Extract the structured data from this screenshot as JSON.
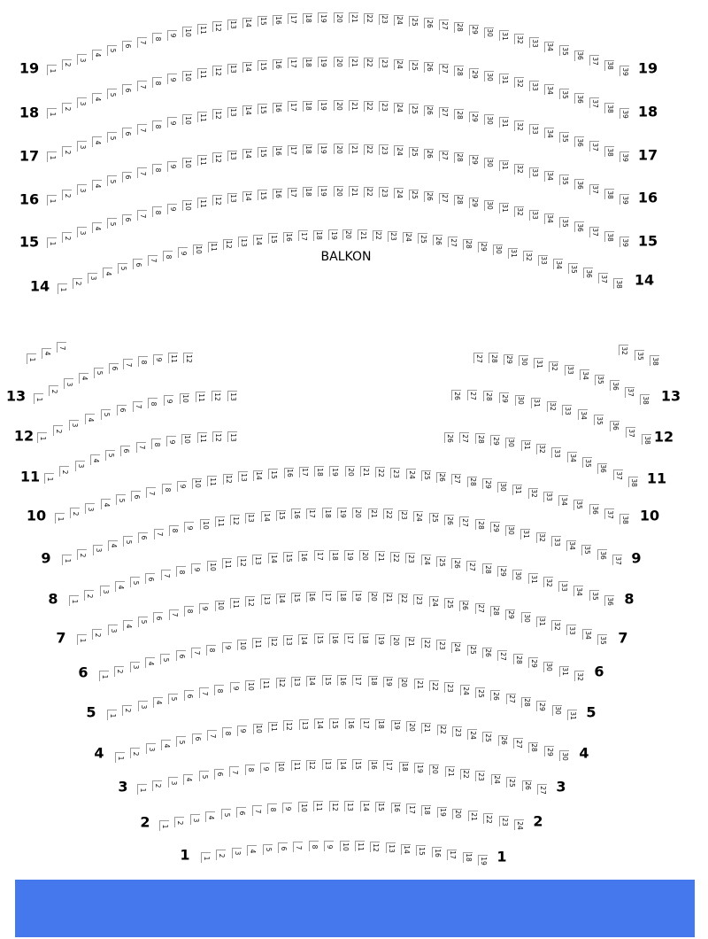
{
  "section_label": "BALKON",
  "colors": {
    "footer_bar": "#4578ED",
    "seat_border": "#9a9a9a",
    "text": "#000000"
  },
  "rows": [
    {
      "label": "19",
      "segments": [
        {
          "from": 1,
          "to": 39
        }
      ]
    },
    {
      "label": "18",
      "segments": [
        {
          "from": 1,
          "to": 39
        }
      ]
    },
    {
      "label": "17",
      "segments": [
        {
          "from": 1,
          "to": 39
        }
      ]
    },
    {
      "label": "16",
      "segments": [
        {
          "from": 1,
          "to": 39
        }
      ]
    },
    {
      "label": "15",
      "segments": [
        {
          "from": 1,
          "to": 39
        }
      ]
    },
    {
      "label": "14",
      "segments": [
        {
          "from": 1,
          "to": 38
        }
      ]
    },
    {
      "label": "",
      "segments": [
        {
          "list": [
            1,
            4,
            7
          ]
        },
        {
          "list": [
            32,
            35,
            38
          ]
        }
      ]
    },
    {
      "label": "13",
      "segments": [
        {
          "list": [
            1,
            2,
            3,
            4,
            5,
            6,
            7,
            8,
            9,
            11,
            12
          ]
        },
        {
          "from": 27,
          "to": 38
        }
      ]
    },
    {
      "label": "12",
      "segments": [
        {
          "from": 1,
          "to": 13
        },
        {
          "from": 26,
          "to": 38
        }
      ]
    },
    {
      "label": "11",
      "segments": [
        {
          "from": 1,
          "to": 13
        },
        {
          "from": 26,
          "to": 38
        }
      ]
    },
    {
      "label": "10",
      "segments": [
        {
          "from": 1,
          "to": 38
        }
      ]
    },
    {
      "label": "9",
      "segments": [
        {
          "from": 1,
          "to": 37
        }
      ]
    },
    {
      "label": "8",
      "segments": [
        {
          "from": 1,
          "to": 36
        }
      ]
    },
    {
      "label": "7",
      "segments": [
        {
          "from": 1,
          "to": 35
        }
      ]
    },
    {
      "label": "6",
      "segments": [
        {
          "from": 1,
          "to": 32
        }
      ]
    },
    {
      "label": "5",
      "segments": [
        {
          "from": 1,
          "to": 31
        }
      ]
    },
    {
      "label": "4",
      "segments": [
        {
          "from": 1,
          "to": 30
        }
      ]
    },
    {
      "label": "3",
      "segments": [
        {
          "from": 1,
          "to": 27
        }
      ]
    },
    {
      "label": "2",
      "segments": [
        {
          "from": 1,
          "to": 24
        }
      ]
    },
    {
      "label": "1",
      "segments": [
        {
          "from": 1,
          "to": 19
        }
      ]
    }
  ]
}
